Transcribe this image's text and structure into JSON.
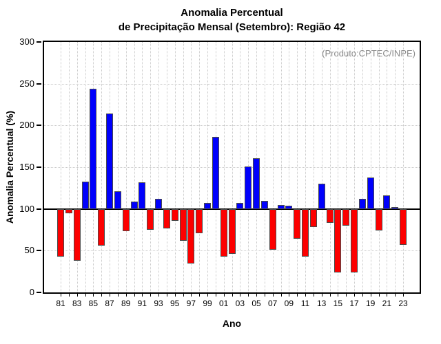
{
  "title": {
    "line1": "Anomalia Percentual",
    "line2": "de Precipitação Mensal (Setembro): Região 42"
  },
  "annotation": "(Produto:CPTEC/INPE)",
  "chart_data": {
    "type": "bar",
    "title": "Anomalia Percentual de Precipitação Mensal (Setembro): Região 42",
    "xlabel": "Ano",
    "ylabel": "Anomalia Percentual (%)",
    "ylim": [
      0,
      300
    ],
    "yticks": [
      0,
      50,
      100,
      150,
      200,
      250,
      300
    ],
    "baseline": 100,
    "grid": "dotted",
    "legend": "none",
    "categories": [
      "81",
      "82",
      "83",
      "84",
      "85",
      "86",
      "87",
      "88",
      "89",
      "90",
      "91",
      "92",
      "93",
      "94",
      "95",
      "96",
      "97",
      "98",
      "99",
      "00",
      "01",
      "02",
      "03",
      "04",
      "05",
      "06",
      "07",
      "08",
      "09",
      "10",
      "11",
      "12",
      "13",
      "14",
      "15",
      "16",
      "17",
      "18",
      "19",
      "20",
      "21",
      "22",
      "23"
    ],
    "x_tick_labels_shown": [
      "81",
      "83",
      "85",
      "87",
      "89",
      "91",
      "93",
      "95",
      "97",
      "99",
      "01",
      "03",
      "05",
      "07",
      "09",
      "11",
      "13",
      "15",
      "17",
      "19",
      "21",
      "23"
    ],
    "values": [
      43,
      95,
      38,
      133,
      244,
      56,
      214,
      121,
      73,
      109,
      132,
      75,
      112,
      77,
      86,
      62,
      35,
      71,
      107,
      186,
      43,
      46,
      107,
      151,
      161,
      110,
      51,
      105,
      104,
      64,
      43,
      78,
      130,
      83,
      24,
      80,
      24,
      112,
      138,
      74,
      116,
      102,
      57
    ],
    "colors": {
      "above_baseline": "#0000fc",
      "below_baseline": "#fc0000",
      "bar_border": "#4a4a4a",
      "grid": "#c9c9c9",
      "baseline_line": "#000000",
      "annotation_text": "#8a8a8a"
    }
  }
}
